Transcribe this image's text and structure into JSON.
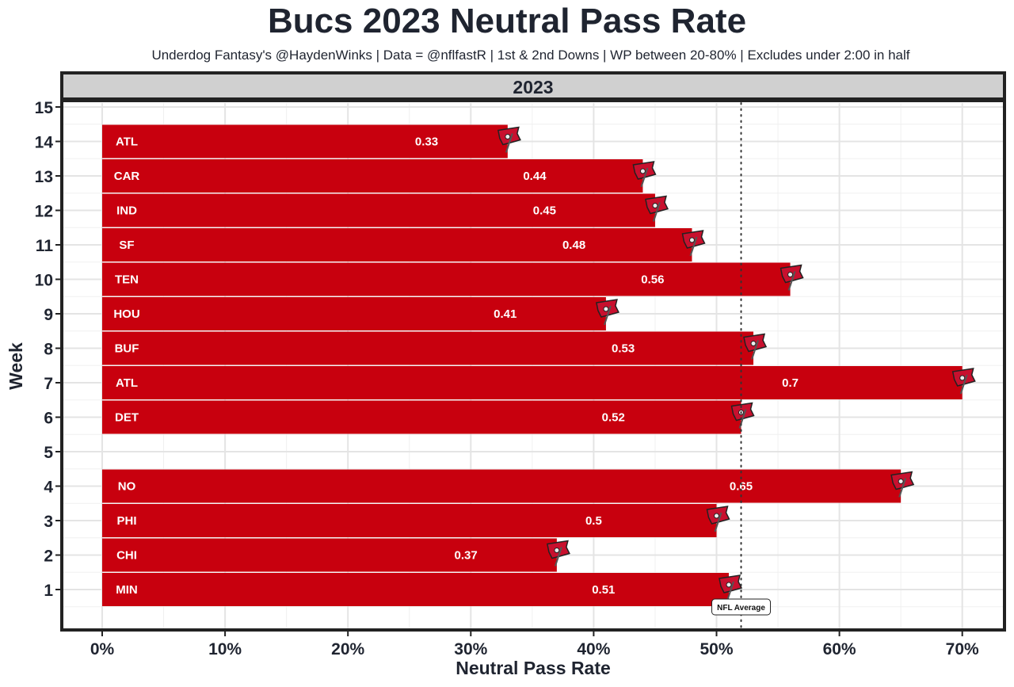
{
  "chart_data": {
    "type": "bar",
    "orientation": "horizontal",
    "title": "Bucs 2023 Neutral Pass Rate",
    "subtitle": "Underdog Fantasy's @HaydenWinks | Data = @nflfastR | 1st & 2nd Downs | WP between 20-80% | Excludes under 2:00 in half",
    "facet_label": "2023",
    "xlabel": "Neutral Pass Rate",
    "ylabel": "Week",
    "xlim": [
      0,
      0.7
    ],
    "ylim": [
      1,
      15
    ],
    "x_ticks": [
      0,
      0.1,
      0.2,
      0.3,
      0.4,
      0.5,
      0.6,
      0.7
    ],
    "x_tick_labels": [
      "0%",
      "10%",
      "20%",
      "30%",
      "40%",
      "50%",
      "60%",
      "70%"
    ],
    "y_ticks": [
      1,
      2,
      3,
      4,
      5,
      6,
      7,
      8,
      9,
      10,
      11,
      12,
      13,
      14,
      15
    ],
    "y_tick_labels": [
      "1",
      "2",
      "3",
      "4",
      "5",
      "6",
      "7",
      "8",
      "9",
      "10",
      "11",
      "12",
      "13",
      "14",
      "15"
    ],
    "grid": true,
    "bar_color": "#C8000E",
    "reference_line": {
      "label": "NFL Average",
      "value": 0.52
    },
    "bars": [
      {
        "week": 14,
        "opponent": "ATL",
        "value": 0.33,
        "label": "0.33"
      },
      {
        "week": 13,
        "opponent": "CAR",
        "value": 0.44,
        "label": "0.44"
      },
      {
        "week": 12,
        "opponent": "IND",
        "value": 0.45,
        "label": "0.45"
      },
      {
        "week": 11,
        "opponent": "SF",
        "value": 0.48,
        "label": "0.48"
      },
      {
        "week": 10,
        "opponent": "TEN",
        "value": 0.56,
        "label": "0.56"
      },
      {
        "week": 9,
        "opponent": "HOU",
        "value": 0.41,
        "label": "0.41"
      },
      {
        "week": 8,
        "opponent": "BUF",
        "value": 0.53,
        "label": "0.53"
      },
      {
        "week": 7,
        "opponent": "ATL",
        "value": 0.7,
        "label": "0.7"
      },
      {
        "week": 6,
        "opponent": "DET",
        "value": 0.52,
        "label": "0.52"
      },
      {
        "week": 4,
        "opponent": "NO",
        "value": 0.65,
        "label": "0.65"
      },
      {
        "week": 3,
        "opponent": "PHI",
        "value": 0.5,
        "label": "0.5"
      },
      {
        "week": 2,
        "opponent": "CHI",
        "value": 0.37,
        "label": "0.37"
      },
      {
        "week": 1,
        "opponent": "MIN",
        "value": 0.51,
        "label": "0.51"
      }
    ],
    "marker_icon": "buccaneers-flag-logo"
  }
}
